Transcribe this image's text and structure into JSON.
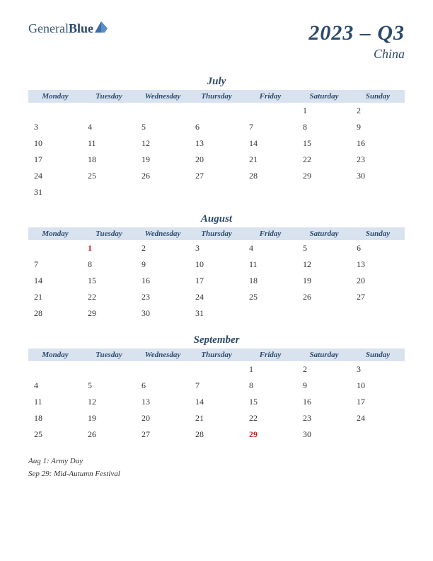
{
  "logo": {
    "text1": "General",
    "text2": "Blue",
    "icon_color1": "#3a6ea5",
    "icon_color2": "#5a8ec5"
  },
  "title": {
    "main": "2023 – Q3",
    "sub": "China"
  },
  "colors": {
    "header_bg": "#d9e3f0",
    "text_primary": "#2c4a6b",
    "holiday": "#c62828",
    "body_text": "#333333"
  },
  "day_headers": [
    "Monday",
    "Tuesday",
    "Wednesday",
    "Thursday",
    "Friday",
    "Saturday",
    "Sunday"
  ],
  "months": [
    {
      "name": "July",
      "weeks": [
        [
          "",
          "",
          "",
          "",
          "",
          "1",
          "2"
        ],
        [
          "3",
          "4",
          "5",
          "6",
          "7",
          "8",
          "9"
        ],
        [
          "10",
          "11",
          "12",
          "13",
          "14",
          "15",
          "16"
        ],
        [
          "17",
          "18",
          "19",
          "20",
          "21",
          "22",
          "23"
        ],
        [
          "24",
          "25",
          "26",
          "27",
          "28",
          "29",
          "30"
        ],
        [
          "31",
          "",
          "",
          "",
          "",
          "",
          ""
        ]
      ],
      "holidays": []
    },
    {
      "name": "August",
      "weeks": [
        [
          "",
          "1",
          "2",
          "3",
          "4",
          "5",
          "6"
        ],
        [
          "7",
          "8",
          "9",
          "10",
          "11",
          "12",
          "13"
        ],
        [
          "14",
          "15",
          "16",
          "17",
          "18",
          "19",
          "20"
        ],
        [
          "21",
          "22",
          "23",
          "24",
          "25",
          "26",
          "27"
        ],
        [
          "28",
          "29",
          "30",
          "31",
          "",
          "",
          ""
        ]
      ],
      "holidays": [
        "1"
      ]
    },
    {
      "name": "September",
      "weeks": [
        [
          "",
          "",
          "",
          "",
          "1",
          "2",
          "3"
        ],
        [
          "4",
          "5",
          "6",
          "7",
          "8",
          "9",
          "10"
        ],
        [
          "11",
          "12",
          "13",
          "14",
          "15",
          "16",
          "17"
        ],
        [
          "18",
          "19",
          "20",
          "21",
          "22",
          "23",
          "24"
        ],
        [
          "25",
          "26",
          "27",
          "28",
          "29",
          "30",
          ""
        ]
      ],
      "holidays": [
        "29"
      ]
    }
  ],
  "notes": [
    "Aug 1: Army Day",
    "Sep 29: Mid-Autumn Festival"
  ]
}
